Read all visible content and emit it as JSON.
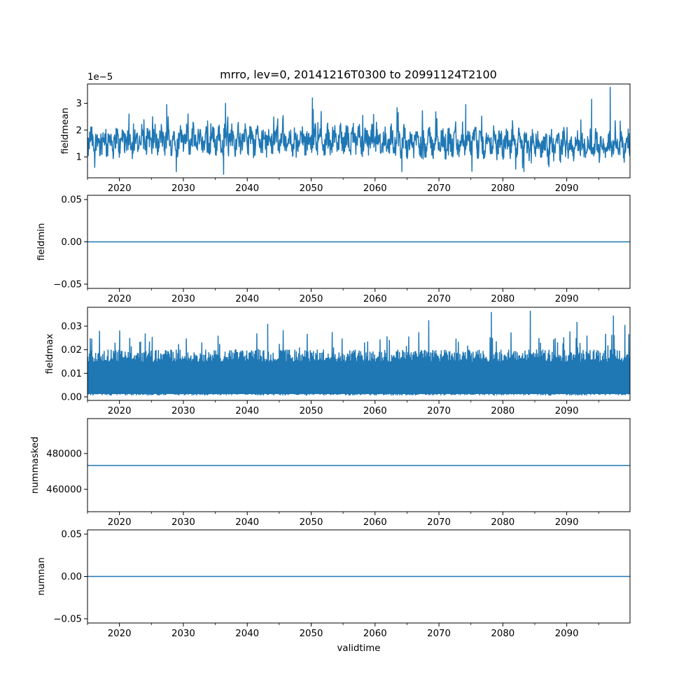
{
  "chart_data": [
    {
      "type": "line",
      "title": "mrro, lev=0, 20141216T0300 to 20991124T2100",
      "ylabel": "fieldmean",
      "xlabel": "",
      "offset_text": "1e−5",
      "xlim": [
        2015.0,
        2099.9
      ],
      "ylim": [
        0.22,
        3.72
      ],
      "xticks": [
        2020,
        2030,
        2040,
        2050,
        2060,
        2070,
        2080,
        2090
      ],
      "xtick_labels": [
        "2020",
        "2030",
        "2040",
        "2050",
        "2060",
        "2070",
        "2080",
        "2090"
      ],
      "yticks": [
        1,
        2,
        3
      ],
      "ytick_labels": [
        "1",
        "2",
        "3"
      ],
      "series": [
        {
          "name": "fieldmean",
          "color": "#1f77b4",
          "style": "noisy",
          "base": 1.55,
          "noise": 0.42,
          "period": 1.0,
          "spikes": [
            {
              "x": 2021.5,
              "y": 2.6
            },
            {
              "x": 2027.4,
              "y": 2.95
            },
            {
              "x": 2036.6,
              "y": 3.0
            },
            {
              "x": 2050.2,
              "y": 3.2
            },
            {
              "x": 2074.2,
              "y": 2.95
            },
            {
              "x": 2093.9,
              "y": 3.15
            },
            {
              "x": 2096.8,
              "y": 3.6
            },
            {
              "x": 2036.3,
              "y": 0.35
            },
            {
              "x": 2028.9,
              "y": 0.45
            },
            {
              "x": 2064.2,
              "y": 0.45
            },
            {
              "x": 2083.3,
              "y": 0.45
            }
          ]
        }
      ]
    },
    {
      "type": "line",
      "ylabel": "fieldmin",
      "xlim": [
        2015.0,
        2099.9
      ],
      "ylim": [
        -0.055,
        0.055
      ],
      "xticks": [
        2020,
        2030,
        2040,
        2050,
        2060,
        2070,
        2080,
        2090
      ],
      "xtick_labels": [
        "2020",
        "2030",
        "2040",
        "2050",
        "2060",
        "2070",
        "2080",
        "2090"
      ],
      "yticks": [
        -0.05,
        0.0,
        0.05
      ],
      "ytick_labels": [
        "−0.05",
        "0.00",
        "0.05"
      ],
      "series": [
        {
          "name": "fieldmin",
          "color": "#1f77b4",
          "style": "constant",
          "value": 0.0
        }
      ]
    },
    {
      "type": "line",
      "ylabel": "fieldmax",
      "xlim": [
        2015.0,
        2099.9
      ],
      "ylim": [
        -0.0015,
        0.038
      ],
      "xticks": [
        2020,
        2030,
        2040,
        2050,
        2060,
        2070,
        2080,
        2090
      ],
      "xtick_labels": [
        "2020",
        "2030",
        "2040",
        "2050",
        "2060",
        "2070",
        "2080",
        "2090"
      ],
      "yticks": [
        0.0,
        0.01,
        0.02,
        0.03
      ],
      "ytick_labels": [
        "0.00",
        "0.01",
        "0.02",
        "0.03"
      ],
      "series": [
        {
          "name": "fieldmax",
          "color": "#1f77b4",
          "style": "band",
          "low": 0.0012,
          "high": 0.0175,
          "spikes": [
            {
              "x": 2043.2,
              "y": 0.031
            },
            {
              "x": 2068.4,
              "y": 0.0325
            },
            {
              "x": 2078.2,
              "y": 0.036
            },
            {
              "x": 2084.3,
              "y": 0.0365
            },
            {
              "x": 2097.3,
              "y": 0.0345
            },
            {
              "x": 2091.6,
              "y": 0.0318
            },
            {
              "x": 2099.1,
              "y": 0.0305
            },
            {
              "x": 2053.3,
              "y": 0.0275
            },
            {
              "x": 2024.7,
              "y": 0.0235
            }
          ]
        }
      ]
    },
    {
      "type": "line",
      "ylabel": "nummasked",
      "xlim": [
        2015.0,
        2099.9
      ],
      "ylim": [
        447500,
        499500
      ],
      "xticks": [
        2020,
        2030,
        2040,
        2050,
        2060,
        2070,
        2080,
        2090
      ],
      "xtick_labels": [
        "2020",
        "2030",
        "2040",
        "2050",
        "2060",
        "2070",
        "2080",
        "2090"
      ],
      "yticks": [
        460000,
        480000
      ],
      "ytick_labels": [
        "460000",
        "480000"
      ],
      "series": [
        {
          "name": "nummasked",
          "color": "#1f77b4",
          "style": "constant",
          "value": 473300
        }
      ]
    },
    {
      "type": "line",
      "ylabel": "numnan",
      "xlabel": "validtime",
      "xlim": [
        2015.0,
        2099.9
      ],
      "ylim": [
        -0.055,
        0.055
      ],
      "xticks": [
        2020,
        2030,
        2040,
        2050,
        2060,
        2070,
        2080,
        2090
      ],
      "xtick_labels": [
        "2020",
        "2030",
        "2040",
        "2050",
        "2060",
        "2070",
        "2080",
        "2090"
      ],
      "yticks": [
        -0.05,
        0.0,
        0.05
      ],
      "ytick_labels": [
        "−0.05",
        "0.00",
        "0.05"
      ],
      "series": [
        {
          "name": "numnan",
          "color": "#1f77b4",
          "style": "constant",
          "value": 0.0
        }
      ]
    }
  ]
}
